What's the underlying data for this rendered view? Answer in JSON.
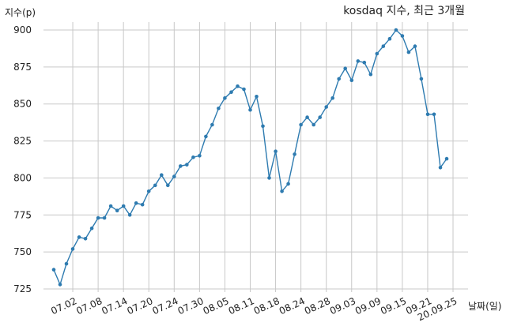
{
  "chart_data": {
    "type": "line",
    "title": "kosdaq 지수, 최근 3개월",
    "xlabel": "날짜(일)",
    "ylabel": "지수(p)",
    "ylim": [
      720,
      905
    ],
    "yticks": [
      725,
      750,
      775,
      800,
      825,
      850,
      875,
      900
    ],
    "xtick_labels": [
      "07.02",
      "07.08",
      "07.14",
      "07.20",
      "07.24",
      "07.30",
      "08.05",
      "08.11",
      "08.18",
      "08.24",
      "08.28",
      "09.03",
      "09.09",
      "09.15",
      "09.21",
      "20.09.25"
    ],
    "xtick_index": [
      3,
      7,
      11,
      15,
      19,
      23,
      27,
      31,
      35,
      39,
      43,
      47,
      51,
      55,
      59,
      63
    ],
    "grid": true,
    "line_color": "#2e7bb0",
    "series": [
      {
        "values": [
          738,
          728,
          742,
          752,
          760,
          759,
          766,
          773,
          773,
          781,
          778,
          781,
          775,
          783,
          782,
          791,
          795,
          802,
          795,
          801,
          808,
          809,
          814,
          815,
          828,
          836,
          847,
          854,
          858,
          862,
          860,
          846,
          855,
          835,
          800,
          818,
          791,
          796,
          816,
          836,
          841,
          836,
          841,
          848,
          854,
          867,
          874,
          866,
          879,
          878,
          870,
          884,
          889,
          894,
          900,
          896,
          885,
          889,
          867,
          843,
          843,
          807,
          813
        ]
      }
    ]
  }
}
